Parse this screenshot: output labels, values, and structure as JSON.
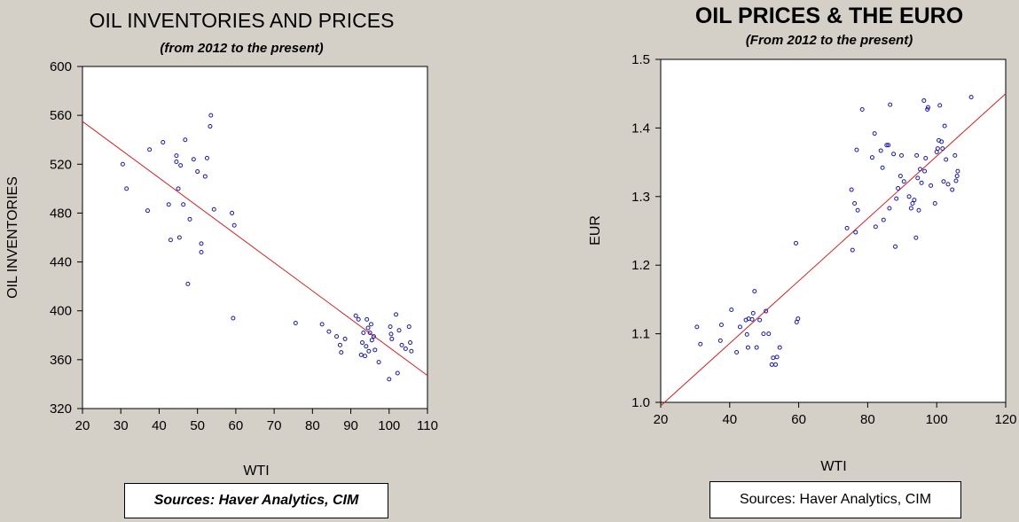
{
  "chart_data": [
    {
      "type": "scatter",
      "title": "OIL INVENTORIES AND PRICES",
      "subtitle": "(from 2012 to the present)",
      "xlabel": "WTI",
      "ylabel": "OIL INVENTORIES",
      "xlim": [
        20,
        110
      ],
      "ylim": [
        320,
        600
      ],
      "xticks": [
        20,
        30,
        40,
        50,
        60,
        70,
        80,
        90,
        100,
        110
      ],
      "yticks": [
        320,
        360,
        400,
        440,
        480,
        520,
        560,
        600
      ],
      "grid": false,
      "source": "Sources: Haver Analytics, CIM",
      "point_color": "#1a1aa8",
      "line_color": "#d02020",
      "trend_line": {
        "x": [
          20,
          110
        ],
        "y": [
          555,
          347
        ]
      },
      "points": [
        [
          30.5,
          520
        ],
        [
          31.5,
          500
        ],
        [
          37,
          482
        ],
        [
          37.5,
          532
        ],
        [
          41,
          538
        ],
        [
          42.5,
          487
        ],
        [
          43,
          458
        ],
        [
          44.5,
          527
        ],
        [
          44.5,
          522
        ],
        [
          45,
          500
        ],
        [
          45.3,
          460
        ],
        [
          45.6,
          519
        ],
        [
          46.3,
          487
        ],
        [
          46.8,
          540
        ],
        [
          47.5,
          422
        ],
        [
          48,
          475
        ],
        [
          49,
          524
        ],
        [
          50,
          514
        ],
        [
          51,
          448
        ],
        [
          51,
          455
        ],
        [
          52,
          510
        ],
        [
          52.5,
          525
        ],
        [
          53.3,
          551
        ],
        [
          53.5,
          560
        ],
        [
          54.3,
          483
        ],
        [
          59,
          480
        ],
        [
          59.3,
          394
        ],
        [
          59.6,
          470
        ],
        [
          75.6,
          390
        ],
        [
          82.5,
          389
        ],
        [
          84.3,
          383
        ],
        [
          86.3,
          379
        ],
        [
          87.2,
          372
        ],
        [
          87.5,
          366
        ],
        [
          88.5,
          377
        ],
        [
          91.3,
          396
        ],
        [
          92,
          393
        ],
        [
          92.7,
          364
        ],
        [
          93,
          374
        ],
        [
          93.3,
          382
        ],
        [
          93.7,
          363
        ],
        [
          94,
          371
        ],
        [
          94.2,
          393
        ],
        [
          94.5,
          386
        ],
        [
          94.7,
          367
        ],
        [
          95,
          382
        ],
        [
          95.3,
          389
        ],
        [
          95.5,
          376
        ],
        [
          96,
          379
        ],
        [
          96.3,
          368
        ],
        [
          97.3,
          358
        ],
        [
          100,
          344
        ],
        [
          100.3,
          387
        ],
        [
          100.5,
          381
        ],
        [
          100.7,
          377
        ],
        [
          101.8,
          397
        ],
        [
          102.2,
          349
        ],
        [
          102.6,
          384
        ],
        [
          103.3,
          372
        ],
        [
          104.3,
          369
        ],
        [
          105.2,
          387
        ],
        [
          105.5,
          374
        ],
        [
          105.8,
          367
        ]
      ]
    },
    {
      "type": "scatter",
      "title": "OIL PRICES & THE EURO",
      "subtitle": "(From 2012 to the present)",
      "xlabel": "WTI",
      "ylabel": "EUR",
      "xlim": [
        20,
        120
      ],
      "ylim": [
        1.0,
        1.5
      ],
      "xticks": [
        20,
        40,
        60,
        80,
        100,
        120
      ],
      "yticks": [
        1.0,
        1.1,
        1.2,
        1.3,
        1.4,
        1.5
      ],
      "ytick_labels": [
        "1.0",
        "1.1",
        "1.2",
        "1.3",
        "1.4",
        "1.5"
      ],
      "grid": false,
      "source": "Sources:  Haver Analytics, CIM",
      "point_color": "#1a1aa8",
      "line_color": "#d02020",
      "trend_line": {
        "x": [
          20,
          120
        ],
        "y": [
          0.995,
          1.45
        ]
      },
      "points": [
        [
          30.5,
          1.11
        ],
        [
          31.5,
          1.085
        ],
        [
          37.3,
          1.09
        ],
        [
          37.6,
          1.113
        ],
        [
          40.5,
          1.135
        ],
        [
          42,
          1.073
        ],
        [
          43,
          1.11
        ],
        [
          44.7,
          1.12
        ],
        [
          45,
          1.099
        ],
        [
          45.3,
          1.08
        ],
        [
          45.5,
          1.122
        ],
        [
          46.5,
          1.121
        ],
        [
          46.8,
          1.13
        ],
        [
          47.2,
          1.162
        ],
        [
          47.8,
          1.08
        ],
        [
          48.7,
          1.12
        ],
        [
          49.8,
          1.1
        ],
        [
          50.5,
          1.133
        ],
        [
          51.3,
          1.1
        ],
        [
          52.2,
          1.055
        ],
        [
          52.6,
          1.065
        ],
        [
          53.3,
          1.055
        ],
        [
          53.7,
          1.066
        ],
        [
          54.5,
          1.08
        ],
        [
          59.2,
          1.232
        ],
        [
          59.4,
          1.117
        ],
        [
          59.8,
          1.122
        ],
        [
          74,
          1.254
        ],
        [
          75.3,
          1.31
        ],
        [
          75.6,
          1.222
        ],
        [
          76.2,
          1.29
        ],
        [
          76.5,
          1.248
        ],
        [
          76.8,
          1.368
        ],
        [
          77.1,
          1.28
        ],
        [
          78.4,
          1.427
        ],
        [
          81.3,
          1.357
        ],
        [
          82,
          1.392
        ],
        [
          82.3,
          1.256
        ],
        [
          83.8,
          1.367
        ],
        [
          84.3,
          1.342
        ],
        [
          84.6,
          1.266
        ],
        [
          85.5,
          1.375
        ],
        [
          86,
          1.375
        ],
        [
          86.3,
          1.283
        ],
        [
          86.5,
          1.434
        ],
        [
          87.5,
          1.362
        ],
        [
          88,
          1.227
        ],
        [
          88.3,
          1.297
        ],
        [
          88.8,
          1.312
        ],
        [
          89.5,
          1.33
        ],
        [
          89.8,
          1.36
        ],
        [
          90.5,
          1.322
        ],
        [
          92,
          1.3
        ],
        [
          92.6,
          1.283
        ],
        [
          93,
          1.29
        ],
        [
          93.5,
          1.295
        ],
        [
          94,
          1.24
        ],
        [
          94.2,
          1.36
        ],
        [
          94.5,
          1.327
        ],
        [
          94.8,
          1.28
        ],
        [
          95.2,
          1.34
        ],
        [
          95.6,
          1.32
        ],
        [
          96.3,
          1.44
        ],
        [
          96.5,
          1.337
        ],
        [
          96.8,
          1.356
        ],
        [
          97.3,
          1.427
        ],
        [
          97.5,
          1.43
        ],
        [
          98.3,
          1.316
        ],
        [
          99.5,
          1.29
        ],
        [
          100,
          1.365
        ],
        [
          100.3,
          1.37
        ],
        [
          100.6,
          1.382
        ],
        [
          100.9,
          1.433
        ],
        [
          101.4,
          1.38
        ],
        [
          101.7,
          1.37
        ],
        [
          102,
          1.322
        ],
        [
          102.3,
          1.403
        ],
        [
          102.7,
          1.354
        ],
        [
          103.3,
          1.318
        ],
        [
          104.5,
          1.31
        ],
        [
          105.3,
          1.36
        ],
        [
          105.6,
          1.323
        ],
        [
          105.9,
          1.33
        ],
        [
          106.1,
          1.337
        ],
        [
          110,
          1.445
        ]
      ]
    }
  ]
}
